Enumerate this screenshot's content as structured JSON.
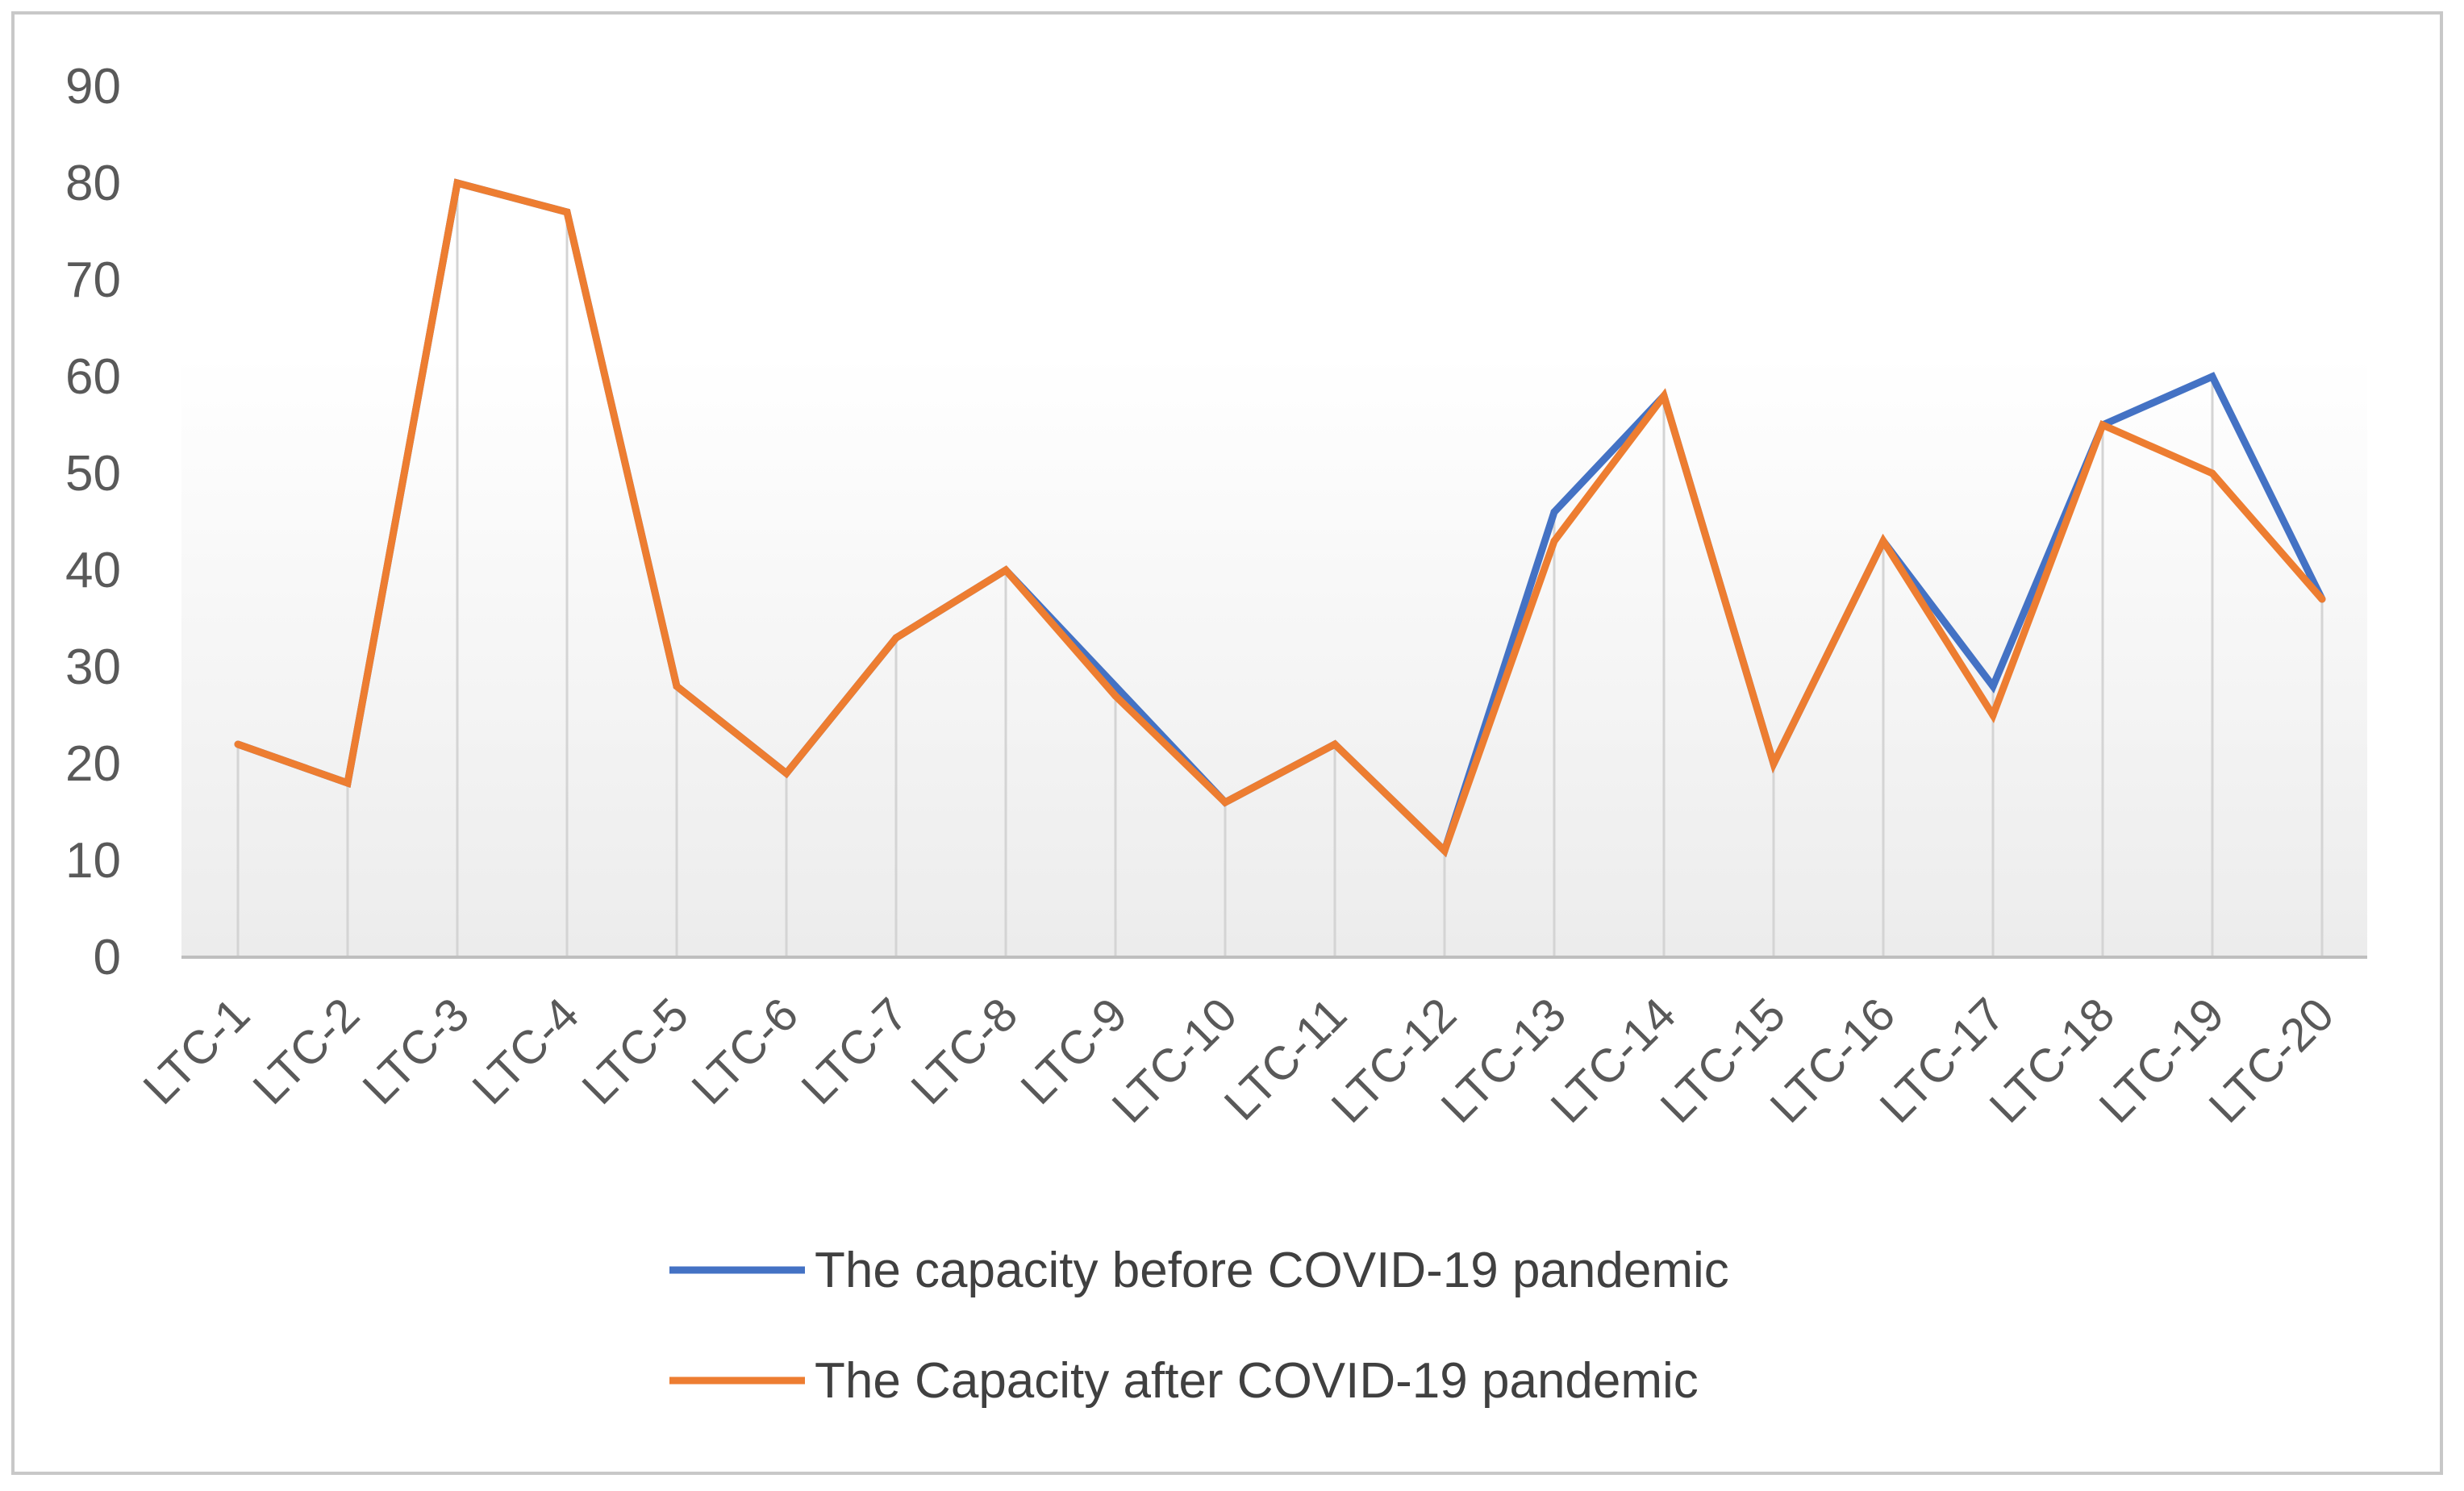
{
  "chart_data": {
    "type": "line",
    "title": "",
    "xlabel": "",
    "ylabel": "",
    "categories": [
      "LTC-1",
      "LTC-2",
      "LTC-3",
      "LTC-4",
      "LTC-5",
      "LTC-6",
      "LTC-7",
      "LTC-8",
      "LTC-9",
      "LTC-10",
      "LTC-11",
      "LTC-12",
      "LTC-13",
      "LTC-14",
      "LTC-15",
      "LTC-16",
      "LTC-17",
      "LTC-18",
      "LTC-19",
      "LTC-20"
    ],
    "yticks": [
      0,
      10,
      20,
      30,
      40,
      50,
      60,
      70,
      80,
      90
    ],
    "ylim": [
      0,
      90
    ],
    "grid": "vertical drop lines",
    "legend_position": "bottom",
    "series": [
      {
        "name": "The capacity before COVID-19 pandemic",
        "color": "#4472C4",
        "values": [
          22,
          18,
          80,
          77,
          28,
          19,
          33,
          40,
          28,
          16,
          22,
          11,
          46,
          58,
          20,
          43,
          28,
          55,
          60,
          37
        ]
      },
      {
        "name": "The Capacity after COVID-19 pandemic",
        "color": "#ED7D31",
        "values": [
          22,
          18,
          80,
          77,
          28,
          19,
          33,
          40,
          27,
          16,
          22,
          11,
          43,
          58,
          20,
          43,
          25,
          55,
          50,
          37
        ]
      }
    ]
  }
}
